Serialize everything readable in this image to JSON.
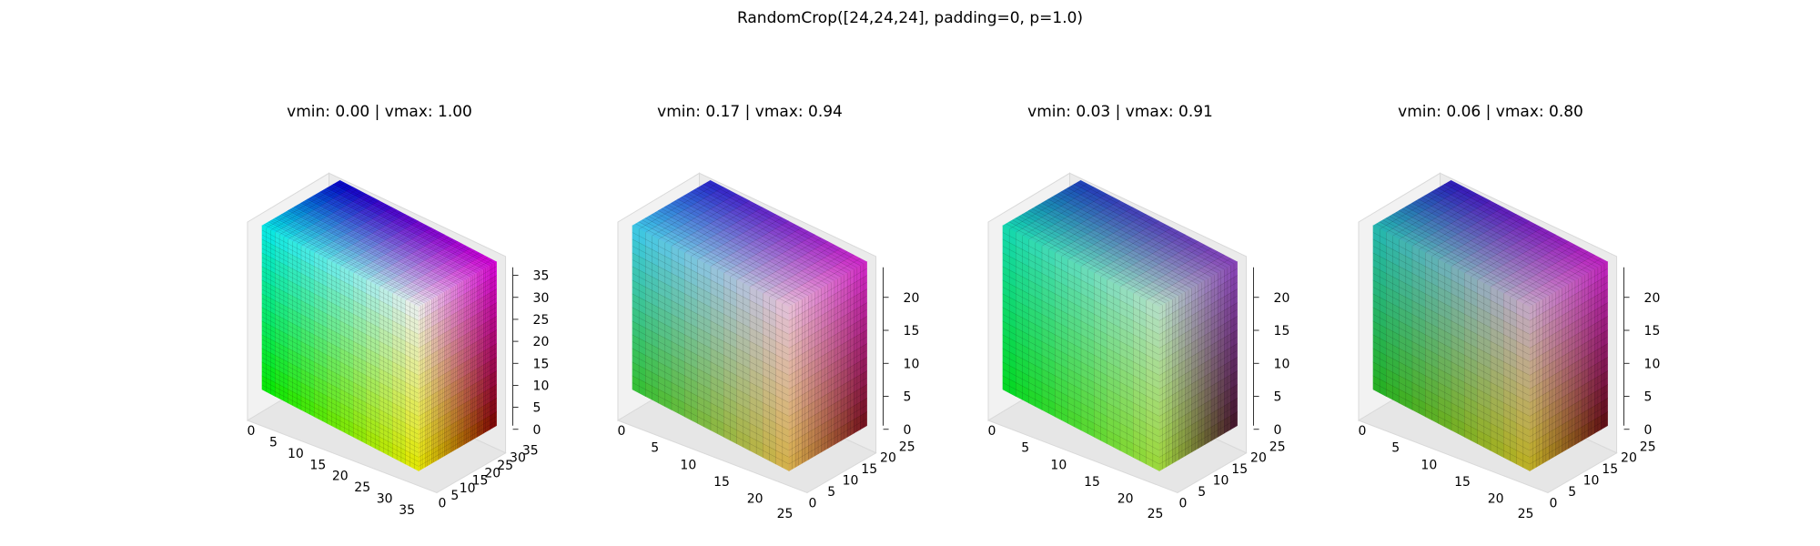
{
  "figure": {
    "suptitle": "RandomCrop([24,24,24], padding=0, p=1.0)"
  },
  "chart_data": [
    {
      "type": "voxel-3d",
      "title": "vmin: 0.00 | vmax: 1.00",
      "xlim": [
        0,
        36
      ],
      "ylim": [
        0,
        36
      ],
      "zlim": [
        0,
        36
      ],
      "x_ticks": [
        "0",
        "5",
        "10",
        "15",
        "20",
        "25",
        "30",
        "35"
      ],
      "y_ticks": [
        "0",
        "5",
        "10",
        "15",
        "20",
        "25",
        "30",
        "35"
      ],
      "z_ticks": [
        "0",
        "5",
        "10",
        "15",
        "20",
        "25",
        "30",
        "35"
      ],
      "grid": true,
      "faces": {
        "top": [
          "#00e8e8",
          "#0000c8",
          "#d800d8",
          "#f0f0f0"
        ],
        "front": [
          "#00e8e8",
          "#f0f0f0",
          "#e8e800",
          "#00e800"
        ],
        "right": [
          "#f0f0f0",
          "#d800d8",
          "#780000",
          "#e8e800"
        ]
      }
    },
    {
      "type": "voxel-3d",
      "title": "vmin: 0.17 | vmax: 0.94",
      "xlim": [
        0,
        24
      ],
      "ylim": [
        0,
        24
      ],
      "zlim": [
        0,
        24
      ],
      "x_ticks": [
        "0",
        "5",
        "10",
        "15",
        "20",
        "25"
      ],
      "y_ticks": [
        "0",
        "5",
        "10",
        "15",
        "20",
        "25"
      ],
      "z_ticks": [
        "0",
        "5",
        "10",
        "15",
        "20"
      ],
      "grid": true,
      "faces": {
        "top": [
          "#38c8e8",
          "#2424c8",
          "#d024c8",
          "#e8c0d8"
        ],
        "front": [
          "#38c8e8",
          "#e8c0d8",
          "#d8b048",
          "#30c030"
        ],
        "right": [
          "#e8c0d8",
          "#d024c8",
          "#6c0c18",
          "#d8b048"
        ]
      }
    },
    {
      "type": "voxel-3d",
      "title": "vmin: 0.03 | vmax: 0.91",
      "xlim": [
        0,
        24
      ],
      "ylim": [
        0,
        24
      ],
      "zlim": [
        0,
        24
      ],
      "x_ticks": [
        "0",
        "5",
        "10",
        "15",
        "20",
        "25"
      ],
      "y_ticks": [
        "0",
        "5",
        "10",
        "15",
        "20",
        "25"
      ],
      "z_ticks": [
        "0",
        "5",
        "10",
        "15",
        "20"
      ],
      "grid": true,
      "faces": {
        "top": [
          "#10d8b0",
          "#1c3cb8",
          "#8840b8",
          "#b8e0c8"
        ],
        "front": [
          "#10d8b0",
          "#b8e0c8",
          "#a0d838",
          "#00d820"
        ],
        "right": [
          "#b8e0c8",
          "#8840b8",
          "#401028",
          "#a0d838"
        ]
      }
    },
    {
      "type": "voxel-3d",
      "title": "vmin: 0.06 | vmax: 0.80",
      "xlim": [
        0,
        24
      ],
      "ylim": [
        0,
        24
      ],
      "zlim": [
        0,
        24
      ],
      "x_ticks": [
        "0",
        "5",
        "10",
        "15",
        "20",
        "25"
      ],
      "y_ticks": [
        "0",
        "5",
        "10",
        "15",
        "20",
        "25"
      ],
      "z_ticks": [
        "0",
        "5",
        "10",
        "15",
        "20"
      ],
      "grid": true,
      "faces": {
        "top": [
          "#20b8b0",
          "#2818b8",
          "#c020c0",
          "#c8a8c8"
        ],
        "front": [
          "#20b8b0",
          "#c8a8c8",
          "#c0b020",
          "#20b020"
        ],
        "right": [
          "#c8a8c8",
          "#c020c0",
          "#580810",
          "#c0b020"
        ]
      }
    }
  ]
}
